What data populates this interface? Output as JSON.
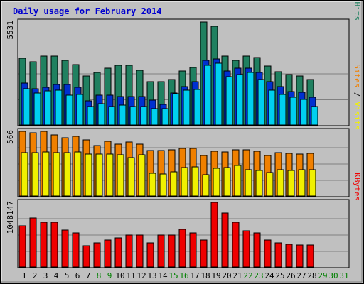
{
  "chart_data": {
    "type": "bar",
    "title": "Daily usage for February 2014",
    "days": [
      "1",
      "2",
      "3",
      "4",
      "5",
      "6",
      "7",
      "8",
      "9",
      "10",
      "11",
      "12",
      "13",
      "14",
      "15",
      "16",
      "17",
      "18",
      "19",
      "20",
      "21",
      "22",
      "23",
      "24",
      "25",
      "26",
      "27",
      "28",
      "29",
      "30",
      "31"
    ],
    "weekend_days": [
      8,
      9,
      15,
      16,
      22,
      23
    ],
    "future_days": [
      29,
      30,
      31
    ],
    "panels": [
      {
        "id": "hits",
        "max_label": "5531",
        "ymax": 5531,
        "right_label": [
          {
            "text": "Pages",
            "color": "#00D0F0"
          },
          {
            "text": " / ",
            "color": "#000000"
          },
          {
            "text": "Files",
            "color": "#0030D0"
          },
          {
            "text": " / ",
            "color": "#000000"
          },
          {
            "text": "Hits",
            "color": "#208060"
          }
        ],
        "series": [
          {
            "color": "#208060",
            "values": [
              3600,
              3400,
              3720,
              3720,
              3470,
              3250,
              2650,
              2830,
              3050,
              3210,
              3210,
              2960,
              2340,
              2340,
              2480,
              2900,
              3090,
              5520,
              5320,
              3700,
              3470,
              3720,
              3620,
              3170,
              2880,
              2730,
              2660,
              2450
            ]
          },
          {
            "color": "#0030D0",
            "values": [
              2260,
              1960,
              2060,
              2180,
              2180,
              2050,
              1310,
              1620,
              1620,
              1540,
              1540,
              1540,
              1380,
              1130,
              1740,
              2090,
              2360,
              3470,
              3570,
              2910,
              3050,
              3050,
              2850,
              2350,
              2070,
              1820,
              1780,
              1510
            ]
          },
          {
            "color": "#00D0F0",
            "values": [
              1960,
              1750,
              1840,
              1900,
              1640,
              1650,
              1010,
              1180,
              1010,
              1100,
              1010,
              1010,
              910,
              900,
              1710,
              1900,
              1940,
              3230,
              3330,
              2620,
              2710,
              2850,
              2470,
              1900,
              1650,
              1520,
              1400,
              1010
            ]
          }
        ]
      },
      {
        "id": "visits",
        "max_label": "566",
        "ymax": 566,
        "right_label": [
          {
            "text": "Sites",
            "color": "#F08000"
          },
          {
            "text": " / ",
            "color": "#000000"
          },
          {
            "text": "Visits",
            "color": "#F0F000"
          }
        ],
        "series": [
          {
            "color": "#F08000",
            "values": [
              566,
              552,
              566,
              538,
              512,
              525,
              490,
              445,
              481,
              458,
              471,
              458,
              400,
              400,
              409,
              418,
              417,
              359,
              392,
              389,
              403,
              403,
              392,
              359,
              383,
              378,
              368,
              378
            ]
          },
          {
            "color": "#F0F000",
            "values": [
              380,
              380,
              385,
              380,
              380,
              385,
              370,
              370,
              370,
              365,
              340,
              360,
              200,
              195,
              215,
              250,
              260,
              190,
              245,
              255,
              270,
              235,
              230,
              210,
              235,
              230,
              235,
              235
            ]
          }
        ]
      },
      {
        "id": "kbytes",
        "max_label": "1048147",
        "ymax": 1048147,
        "right_label": [
          {
            "text": "KBytes",
            "color": "#F00000"
          }
        ],
        "series": [
          {
            "color": "#F00000",
            "values": [
              670000,
              800000,
              730000,
              730000,
              600000,
              560000,
              350000,
              400000,
              450000,
              480000,
              520000,
              520000,
              400000,
              520000,
              520000,
              620000,
              560000,
              440000,
              1048147,
              880000,
              730000,
              590000,
              560000,
              450000,
              400000,
              380000,
              370000,
              370000
            ]
          }
        ]
      }
    ]
  }
}
